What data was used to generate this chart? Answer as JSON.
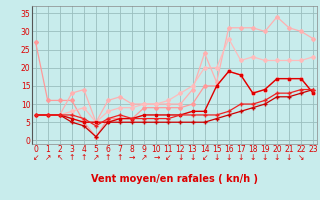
{
  "xlabel": "Vent moyen/en rafales ( kn/h )",
  "background_color": "#c8ecec",
  "grid_color": "#9abebe",
  "x_ticks": [
    0,
    1,
    2,
    3,
    4,
    5,
    6,
    7,
    8,
    9,
    10,
    11,
    12,
    13,
    14,
    15,
    16,
    17,
    18,
    19,
    20,
    21,
    22,
    23
  ],
  "ylim": [
    -1,
    37
  ],
  "xlim": [
    -0.3,
    23.3
  ],
  "yticks": [
    0,
    5,
    10,
    15,
    20,
    25,
    30,
    35
  ],
  "lines": [
    {
      "x": [
        0,
        1,
        2,
        3,
        4,
        5,
        6,
        7,
        8,
        9,
        10,
        11,
        12,
        13,
        14,
        15,
        16,
        17,
        18,
        19,
        20,
        21,
        22,
        23
      ],
      "y": [
        27,
        11,
        11,
        11,
        5,
        1,
        6,
        6,
        6,
        9,
        9,
        9,
        9,
        10,
        15,
        15,
        19,
        18,
        13,
        14,
        17,
        17,
        17,
        13
      ],
      "color": "#ff9999",
      "lw": 0.9,
      "marker": "D",
      "ms": 2.0,
      "zorder": 2
    },
    {
      "x": [
        0,
        1,
        2,
        3,
        4,
        5,
        6,
        7,
        8,
        9,
        10,
        11,
        12,
        13,
        14,
        15,
        16,
        17,
        18,
        19,
        20,
        21,
        22,
        23
      ],
      "y": [
        7,
        7,
        7,
        13,
        14,
        5,
        11,
        12,
        10,
        10,
        10,
        10,
        10,
        14,
        24,
        16,
        31,
        31,
        31,
        30,
        34,
        31,
        30,
        28
      ],
      "color": "#ffb0b0",
      "lw": 0.9,
      "marker": "D",
      "ms": 2.0,
      "zorder": 2
    },
    {
      "x": [
        0,
        1,
        2,
        3,
        4,
        5,
        6,
        7,
        8,
        9,
        10,
        11,
        12,
        13,
        14,
        15,
        16,
        17,
        18,
        19,
        20,
        21,
        22,
        23
      ],
      "y": [
        7,
        7,
        7,
        8,
        9,
        5,
        8,
        9,
        9,
        10,
        10,
        11,
        13,
        15,
        20,
        20,
        28,
        22,
        23,
        22,
        22,
        22,
        22,
        23
      ],
      "color": "#ffbbbb",
      "lw": 0.9,
      "marker": "D",
      "ms": 2.0,
      "zorder": 2
    },
    {
      "x": [
        0,
        1,
        2,
        3,
        4,
        5,
        6,
        7,
        8,
        9,
        10,
        11,
        12,
        13,
        14,
        15,
        16,
        17,
        18,
        19,
        20,
        21,
        22,
        23
      ],
      "y": [
        7,
        7,
        7,
        6,
        5,
        5,
        5,
        6,
        6,
        7,
        7,
        7,
        7,
        8,
        8,
        15,
        19,
        18,
        13,
        14,
        17,
        17,
        17,
        13
      ],
      "color": "#dd0000",
      "lw": 1.0,
      "marker": "s",
      "ms": 2.0,
      "zorder": 3
    },
    {
      "x": [
        0,
        1,
        2,
        3,
        4,
        5,
        6,
        7,
        8,
        9,
        10,
        11,
        12,
        13,
        14,
        15,
        16,
        17,
        18,
        19,
        20,
        21,
        22,
        23
      ],
      "y": [
        7,
        7,
        7,
        5,
        4,
        1,
        5,
        5,
        5,
        5,
        5,
        5,
        5,
        5,
        5,
        6,
        7,
        8,
        9,
        10,
        12,
        12,
        13,
        14
      ],
      "color": "#cc0000",
      "lw": 0.9,
      "marker": "+",
      "ms": 3.5,
      "zorder": 3
    },
    {
      "x": [
        0,
        1,
        2,
        3,
        4,
        5,
        6,
        7,
        8,
        9,
        10,
        11,
        12,
        13,
        14,
        15,
        16,
        17,
        18,
        19,
        20,
        21,
        22,
        23
      ],
      "y": [
        7,
        7,
        7,
        7,
        6,
        4,
        6,
        7,
        6,
        6,
        6,
        6,
        7,
        7,
        7,
        7,
        8,
        10,
        10,
        11,
        13,
        13,
        14,
        14
      ],
      "color": "#ee2222",
      "lw": 0.9,
      "marker": "+",
      "ms": 3.0,
      "zorder": 3
    }
  ],
  "wind_arrows": [
    "↙",
    "↗",
    "↖",
    "↑",
    "↑",
    "↗",
    "↑",
    "↑",
    "→",
    "↗",
    "→",
    "↙",
    "↓",
    "↓",
    "↙",
    "↓",
    "↓",
    "↓",
    "↓",
    "↓",
    "↓",
    "↓",
    "↘"
  ],
  "arrow_fontsize": 5.5,
  "tick_fontsize": 5.5,
  "xlabel_fontsize": 7,
  "tick_color": "#dd0000",
  "xlabel_color": "#dd0000"
}
